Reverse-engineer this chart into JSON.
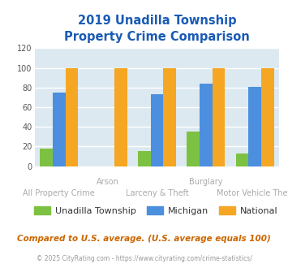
{
  "title": "2019 Unadilla Township\nProperty Crime Comparison",
  "categories": [
    "All Property Crime",
    "Arson",
    "Larceny & Theft",
    "Burglary",
    "Motor Vehicle Theft"
  ],
  "unadilla": [
    18,
    0,
    15,
    35,
    13
  ],
  "michigan": [
    75,
    0,
    73,
    84,
    81
  ],
  "national": [
    100,
    100,
    100,
    100,
    100
  ],
  "bar_colors": {
    "unadilla": "#7dc142",
    "michigan": "#4b8fde",
    "national": "#f5a623"
  },
  "ylim": [
    0,
    120
  ],
  "yticks": [
    0,
    20,
    40,
    60,
    80,
    100,
    120
  ],
  "top_xlabels": {
    "1": "Arson",
    "3": "Burglary"
  },
  "bot_xlabels": {
    "0": "All Property Crime",
    "2": "Larceny & Theft",
    "4": "Motor Vehicle Theft"
  },
  "legend_labels": [
    "Unadilla Township",
    "Michigan",
    "National"
  ],
  "footnote1": "Compared to U.S. average. (U.S. average equals 100)",
  "footnote2": "© 2025 CityRating.com - https://www.cityrating.com/crime-statistics/",
  "title_color": "#1a5bb5",
  "footnote1_color": "#cc6600",
  "footnote2_color": "#999999",
  "legend_text_color": "#333333",
  "bg_color": "#dce9f0",
  "fig_bg": "#ffffff",
  "grid_color": "#ffffff",
  "xlabel_color": "#aaaaaa",
  "ytick_color": "#555555"
}
